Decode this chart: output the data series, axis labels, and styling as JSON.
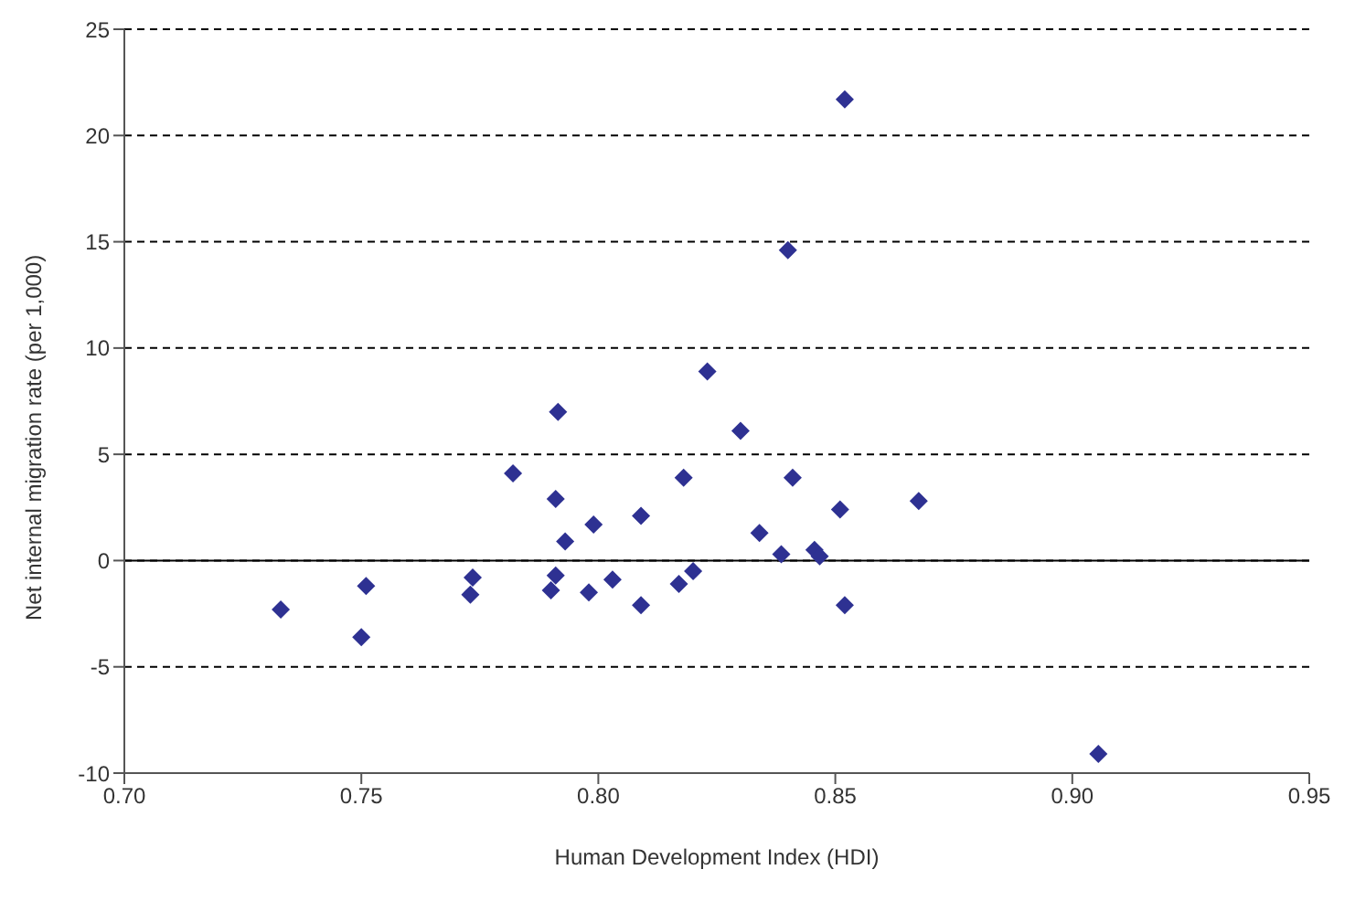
{
  "chart_data": {
    "type": "scatter",
    "xlabel": "Human Development Index (HDI)",
    "ylabel": "Net internal migration rate (per 1,000)",
    "x": [
      0.733,
      0.75,
      0.751,
      0.7735,
      0.773,
      0.782,
      0.7915,
      0.791,
      0.791,
      0.79,
      0.793,
      0.798,
      0.799,
      0.803,
      0.809,
      0.809,
      0.817,
      0.818,
      0.82,
      0.823,
      0.83,
      0.834,
      0.8386,
      0.84,
      0.841,
      0.8456,
      0.8467,
      0.851,
      0.852,
      0.852,
      0.8676,
      0.9055
    ],
    "series": [
      {
        "color": "#2e3192",
        "values": [
          -2.3,
          -3.6,
          -1.2,
          -0.8,
          -1.6,
          4.1,
          7.0,
          2.9,
          -0.7,
          -1.4,
          0.9,
          -1.5,
          1.7,
          -0.9,
          2.1,
          -2.1,
          -1.1,
          3.9,
          -0.5,
          8.9,
          6.1,
          1.3,
          0.3,
          14.6,
          3.9,
          0.5,
          0.2,
          2.4,
          -2.1,
          21.7,
          2.8,
          -9.1
        ]
      }
    ],
    "xlim": [
      0.7,
      0.95
    ],
    "xticks": [
      {
        "value": 0.7,
        "label": "0.70"
      },
      {
        "value": 0.75,
        "label": "0.75"
      },
      {
        "value": 0.8,
        "label": "0.80"
      },
      {
        "value": 0.85,
        "label": "0.85"
      },
      {
        "value": 0.9,
        "label": "0.90"
      },
      {
        "value": 0.95,
        "label": "0.95"
      }
    ],
    "ylim": [
      -10,
      25
    ],
    "yticks": [
      -10,
      -5,
      0,
      5,
      10,
      15,
      20,
      25
    ],
    "grid": "y",
    "marker": "diamond",
    "legend": false
  }
}
